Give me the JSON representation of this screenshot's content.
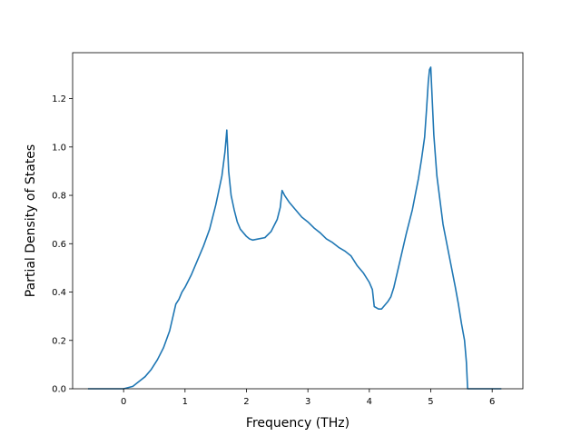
{
  "chart_data": {
    "type": "line",
    "title": "",
    "xlabel": "Frequency (THz)",
    "ylabel": "Partial Density of States",
    "xlim": [
      -0.83,
      6.5
    ],
    "ylim": [
      0,
      1.39
    ],
    "xticks": [
      0,
      1,
      2,
      3,
      4,
      5,
      6
    ],
    "xtick_labels": [
      "0",
      "1",
      "2",
      "3",
      "4",
      "5",
      "6"
    ],
    "yticks": [
      0.0,
      0.2,
      0.4,
      0.6,
      0.8,
      1.0,
      1.2
    ],
    "ytick_labels": [
      "0.0",
      "0.2",
      "0.4",
      "0.6",
      "0.8",
      "1.0",
      "1.2"
    ],
    "grid": false,
    "legend": false,
    "series": [
      {
        "color": "#1f77b4",
        "x": [
          -0.58,
          -0.3,
          0.0,
          0.15,
          0.25,
          0.35,
          0.45,
          0.55,
          0.65,
          0.75,
          0.85,
          0.9,
          0.95,
          1.0,
          1.1,
          1.2,
          1.3,
          1.4,
          1.5,
          1.6,
          1.65,
          1.68,
          1.71,
          1.75,
          1.8,
          1.85,
          1.9,
          2.0,
          2.05,
          2.1,
          2.2,
          2.3,
          2.4,
          2.5,
          2.55,
          2.58,
          2.62,
          2.7,
          2.8,
          2.9,
          3.0,
          3.1,
          3.2,
          3.3,
          3.4,
          3.5,
          3.6,
          3.7,
          3.8,
          3.9,
          4.0,
          4.05,
          4.08,
          4.15,
          4.2,
          4.3,
          4.35,
          4.4,
          4.5,
          4.6,
          4.7,
          4.8,
          4.85,
          4.9,
          4.93,
          4.96,
          4.98,
          5.0,
          5.05,
          5.1,
          5.2,
          5.3,
          5.4,
          5.45,
          5.5,
          5.55,
          5.58,
          5.6,
          5.7,
          6.15
        ],
        "y": [
          0.0,
          0.0,
          0.0,
          0.01,
          0.03,
          0.05,
          0.08,
          0.12,
          0.17,
          0.24,
          0.35,
          0.37,
          0.4,
          0.42,
          0.47,
          0.53,
          0.59,
          0.66,
          0.76,
          0.88,
          0.98,
          1.07,
          0.9,
          0.8,
          0.74,
          0.69,
          0.66,
          0.63,
          0.62,
          0.615,
          0.62,
          0.625,
          0.65,
          0.7,
          0.75,
          0.82,
          0.8,
          0.77,
          0.74,
          0.71,
          0.69,
          0.665,
          0.645,
          0.62,
          0.605,
          0.585,
          0.57,
          0.55,
          0.51,
          0.48,
          0.44,
          0.41,
          0.34,
          0.33,
          0.33,
          0.36,
          0.38,
          0.42,
          0.53,
          0.64,
          0.74,
          0.87,
          0.95,
          1.04,
          1.15,
          1.27,
          1.32,
          1.33,
          1.05,
          0.88,
          0.68,
          0.55,
          0.42,
          0.35,
          0.27,
          0.2,
          0.11,
          0.0,
          0.0,
          0.0
        ]
      }
    ]
  }
}
